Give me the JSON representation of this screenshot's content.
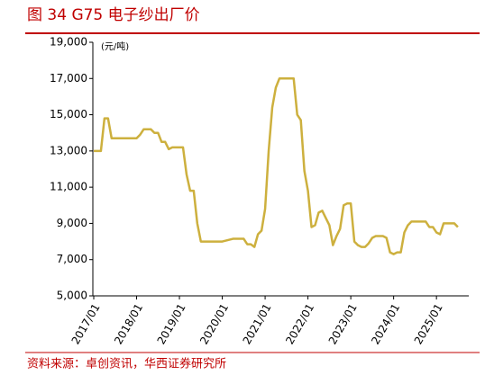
{
  "chart_data": {
    "type": "line",
    "title": "图 34 G75 电子纱出厂价",
    "unit_label": "(元/吨)",
    "source": "资料来源：卓创资讯，华西证券研究所",
    "categories": [
      "2017/01",
      null,
      null,
      null,
      null,
      null,
      null,
      null,
      null,
      null,
      null,
      null,
      "2018/01",
      null,
      null,
      null,
      null,
      null,
      null,
      null,
      null,
      null,
      null,
      null,
      "2019/01",
      null,
      null,
      null,
      null,
      null,
      null,
      null,
      null,
      null,
      null,
      null,
      "2020/01",
      null,
      null,
      null,
      null,
      null,
      null,
      null,
      null,
      null,
      null,
      null,
      "2021/01",
      null,
      null,
      null,
      null,
      null,
      null,
      null,
      null,
      null,
      null,
      null,
      "2022/01",
      null,
      null,
      null,
      null,
      null,
      null,
      null,
      null,
      null,
      null,
      null,
      "2023/01",
      null,
      null,
      null,
      null,
      null,
      null,
      null,
      null,
      null,
      null,
      null,
      "2024/01",
      null,
      null,
      null,
      null,
      null,
      null,
      null,
      null,
      null,
      null,
      null,
      "2025/01",
      null,
      null,
      null,
      null,
      null,
      null
    ],
    "series": [
      {
        "name": "G75 电子纱出厂价",
        "color": "#cdb03e",
        "values": [
          13000,
          13000,
          13000,
          14800,
          14800,
          13700,
          13700,
          13700,
          13700,
          13700,
          13700,
          13700,
          13700,
          13900,
          14200,
          14200,
          14200,
          14000,
          14000,
          13500,
          13500,
          13100,
          13200,
          13200,
          13200,
          13200,
          11700,
          10800,
          10800,
          9000,
          8000,
          8000,
          8000,
          8000,
          8000,
          8000,
          8000,
          8050,
          8100,
          8150,
          8150,
          8150,
          8150,
          7850,
          7850,
          7700,
          8400,
          8600,
          9800,
          13000,
          15400,
          16500,
          17000,
          17000,
          17000,
          17000,
          17000,
          15000,
          14700,
          11900,
          10800,
          8800,
          8900,
          9600,
          9700,
          9300,
          8900,
          7800,
          8300,
          8700,
          10000,
          10100,
          10100,
          8000,
          7800,
          7700,
          7700,
          7900,
          8200,
          8300,
          8300,
          8300,
          8200,
          7400,
          7300,
          7400,
          7400,
          8500,
          8900,
          9100,
          9100,
          9100,
          9100,
          9100,
          8800,
          8800,
          8500,
          8400,
          9000,
          9000,
          9000,
          9000,
          8800
        ]
      }
    ],
    "ylim": [
      5000,
      19000
    ],
    "yticks": [
      {
        "value": 5000,
        "label": "5,000"
      },
      {
        "value": 7000,
        "label": "7,000"
      },
      {
        "value": 9000,
        "label": "9,000"
      },
      {
        "value": 11000,
        "label": "11,000"
      },
      {
        "value": 13000,
        "label": "13,000"
      },
      {
        "value": 15000,
        "label": "15,000"
      },
      {
        "value": 17000,
        "label": "17,000"
      },
      {
        "value": 19000,
        "label": "19,000"
      }
    ]
  }
}
